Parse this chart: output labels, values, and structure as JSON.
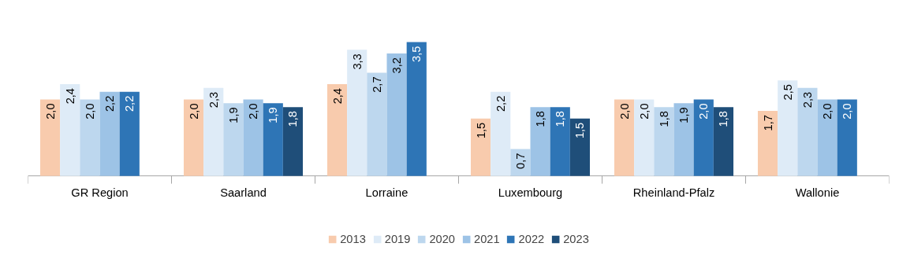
{
  "chart_data": {
    "type": "bar",
    "categories": [
      "GR Region",
      "Saarland",
      "Lorraine",
      "Luxembourg",
      "Rheinland-Pfalz",
      "Wallonie"
    ],
    "series": [
      {
        "name": "2013",
        "color": "#f8cbad",
        "values": [
          2.0,
          2.0,
          2.4,
          1.5,
          2.0,
          1.7
        ],
        "value_labels": [
          "2,0",
          "2,0",
          "2,4",
          "1,5",
          "2,0",
          "1,7"
        ]
      },
      {
        "name": "2019",
        "color": "#deebf7",
        "values": [
          2.4,
          2.3,
          3.3,
          2.2,
          2.0,
          2.5
        ],
        "value_labels": [
          "2,4",
          "2,3",
          "3,3",
          "2,2",
          "2,0",
          "2,5"
        ]
      },
      {
        "name": "2020",
        "color": "#bdd7ee",
        "values": [
          2.0,
          1.9,
          2.7,
          0.7,
          1.8,
          2.3
        ],
        "value_labels": [
          "2,0",
          "1,9",
          "2,7",
          "0,7",
          "1,8",
          "2,3"
        ]
      },
      {
        "name": "2021",
        "color": "#9dc3e6",
        "values": [
          2.2,
          2.0,
          3.2,
          1.8,
          1.9,
          2.0
        ],
        "value_labels": [
          "2,2",
          "2,0",
          "3,2",
          "1,8",
          "1,9",
          "2,0"
        ]
      },
      {
        "name": "2022",
        "color": "#2e75b6",
        "values": [
          2.2,
          1.9,
          3.5,
          1.8,
          2.0,
          2.0
        ],
        "value_labels": [
          "2,2",
          "1,9",
          "3,5",
          "1,8",
          "2,0",
          "2,0"
        ]
      },
      {
        "name": "2023",
        "color": "#1f4e79",
        "values": [
          null,
          1.8,
          null,
          1.5,
          1.8,
          null
        ],
        "value_labels": [
          null,
          "1,8",
          null,
          "1,5",
          "1,8",
          null
        ]
      }
    ],
    "legend": "bottom",
    "tick_labels": "x"
  }
}
